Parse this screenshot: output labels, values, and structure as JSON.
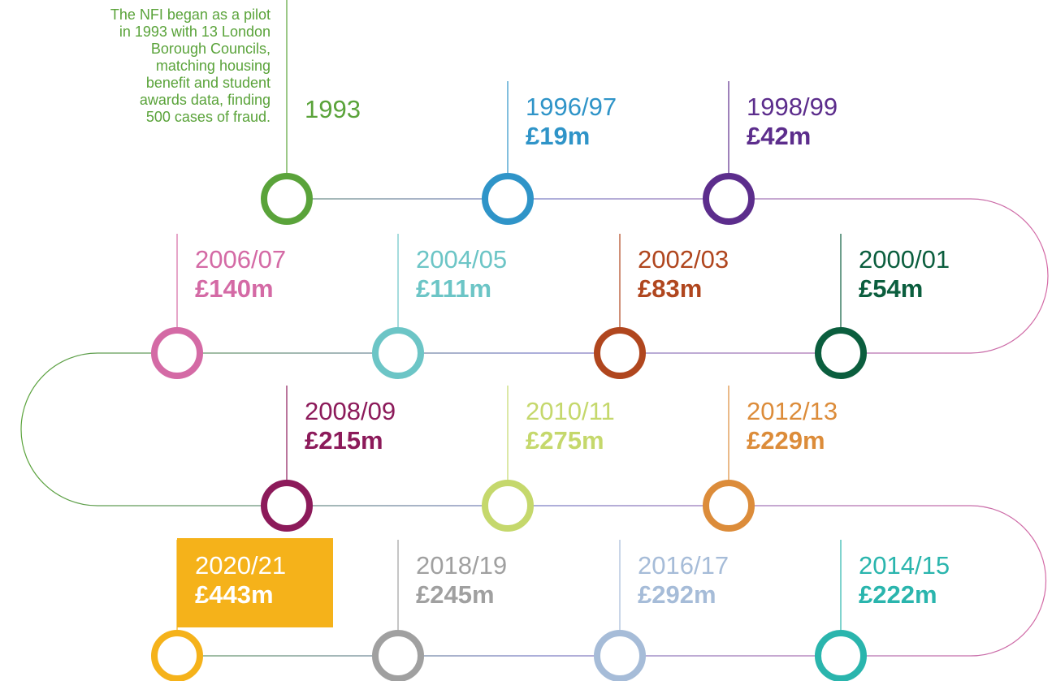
{
  "intro": [
    "The NFI began as a pilot",
    "in 1993 with 13 London",
    "Borough Councils,",
    "matching housing",
    "benefit and student",
    "awards data, finding",
    "500 cases of fraud."
  ],
  "nodes": [
    {
      "year": "1993",
      "color": "#5aa33a"
    },
    {
      "year": "1996/97",
      "amount": "£19m",
      "color": "#2f94c8"
    },
    {
      "year": "1998/99",
      "amount": "£42m",
      "color": "#5c2d8c"
    },
    {
      "year": "2000/01",
      "amount": "£54m",
      "color": "#0b5e3e"
    },
    {
      "year": "2002/03",
      "amount": "£83m",
      "color": "#b0461e"
    },
    {
      "year": "2004/05",
      "amount": "£111m",
      "color": "#6cc5c6"
    },
    {
      "year": "2006/07",
      "amount": "£140m",
      "color": "#d46aa5"
    },
    {
      "year": "2008/09",
      "amount": "£215m",
      "color": "#8c1a5a"
    },
    {
      "year": "2010/11",
      "amount": "£275m",
      "color": "#c5d86c"
    },
    {
      "year": "2012/13",
      "amount": "£229m",
      "color": "#dc8c3a"
    },
    {
      "year": "2014/15",
      "amount": "£222m",
      "color": "#2ab5ad"
    },
    {
      "year": "2016/17",
      "amount": "£292m",
      "color": "#a6bcd8"
    },
    {
      "year": "2018/19",
      "amount": "£245m",
      "color": "#a0a0a0"
    },
    {
      "year": "2020/21",
      "amount": "£443m",
      "color": "#f5b21a",
      "highlight": true
    }
  ]
}
